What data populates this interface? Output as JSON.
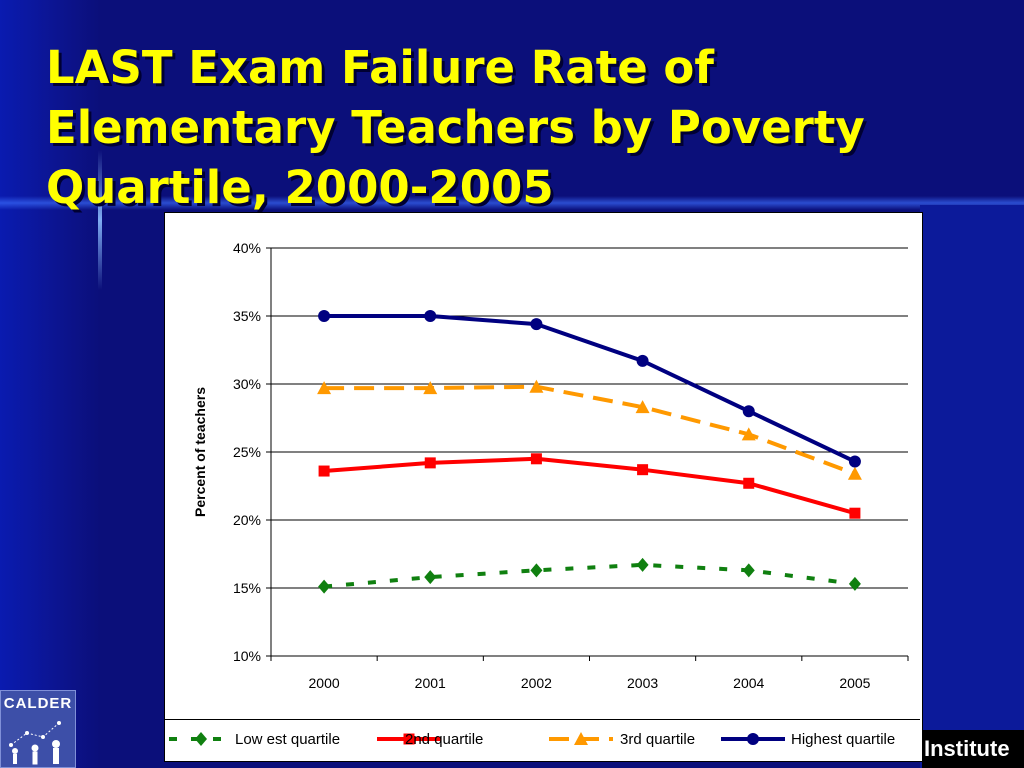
{
  "slide": {
    "title": "LAST Exam Failure Rate of Elementary Teachers by Poverty Quartile, 2000-2005",
    "logo_left_text": "CALDER",
    "logo_right_text": "Institute"
  },
  "colors": {
    "background": "#0b0f7a",
    "title": "#ffff00",
    "lowest": "#108010",
    "second": "#ff0000",
    "third": "#ff9900",
    "highest": "#000080"
  },
  "chart_data": {
    "type": "line",
    "title": "",
    "xlabel": "",
    "ylabel": "Percent of teachers",
    "x": [
      "2000",
      "2001",
      "2002",
      "2003",
      "2004",
      "2005"
    ],
    "ylim": [
      10,
      40
    ],
    "yticks": [
      "10%",
      "15%",
      "20%",
      "25%",
      "30%",
      "35%",
      "40%"
    ],
    "grid": true,
    "legend_position": "bottom",
    "series": [
      {
        "name": "Low est quartile",
        "values": [
          15.1,
          15.8,
          16.3,
          16.7,
          16.3,
          15.3
        ],
        "color": "#108010",
        "dash": "dotted",
        "marker": "diamond"
      },
      {
        "name": "2nd quartile",
        "values": [
          23.6,
          24.2,
          24.5,
          23.7,
          22.7,
          20.5
        ],
        "color": "#ff0000",
        "dash": "solid",
        "marker": "square"
      },
      {
        "name": "3rd quartile",
        "values": [
          29.7,
          29.7,
          29.8,
          28.3,
          26.3,
          23.4
        ],
        "color": "#ff9900",
        "dash": "dashed",
        "marker": "triangle"
      },
      {
        "name": "Highest quartile",
        "values": [
          35.0,
          35.0,
          34.4,
          31.7,
          28.0,
          24.3
        ],
        "color": "#000080",
        "dash": "solid",
        "marker": "circle"
      }
    ]
  }
}
